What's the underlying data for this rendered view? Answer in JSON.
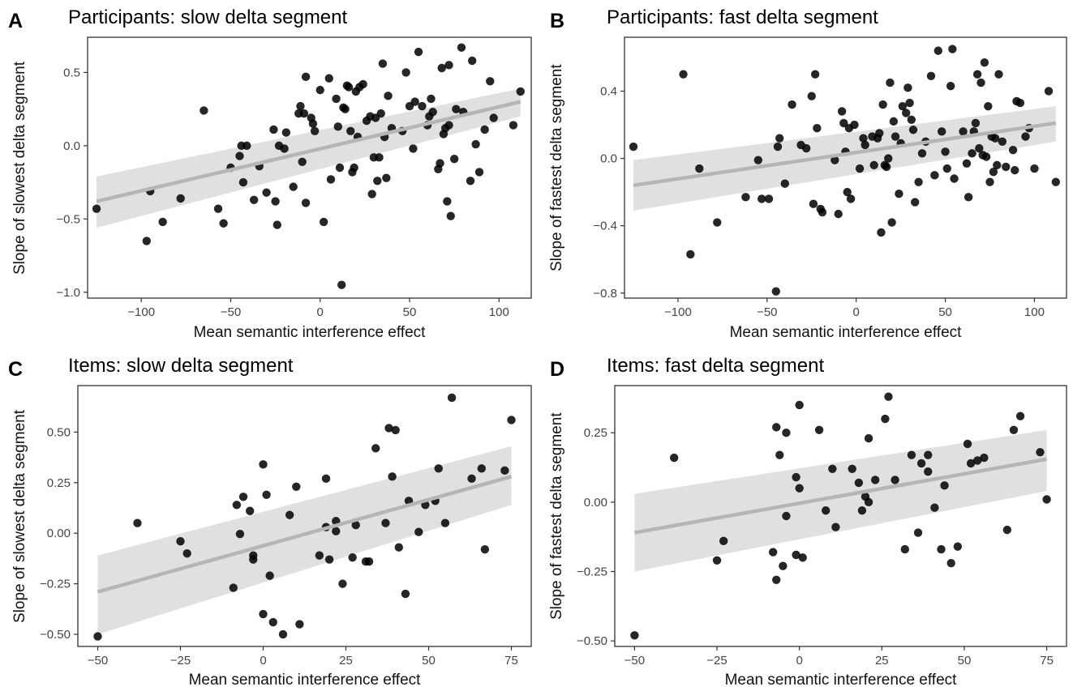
{
  "chart_data": [
    {
      "panel": "A",
      "title": "Participants: slow delta segment",
      "type": "scatter",
      "xlabel": "Mean semantic interference effect",
      "ylabel": "Slope of slowest delta segment",
      "xlim": [
        -130,
        118
      ],
      "ylim": [
        -1.04,
        0.74
      ],
      "xticks": [
        -100,
        -50,
        0,
        50,
        100
      ],
      "xtick_labels": [
        "−100",
        "−50",
        "0",
        "50",
        "100"
      ],
      "yticks": [
        -1.0,
        -0.5,
        0.0,
        0.5
      ],
      "ytick_labels": [
        "−1.0",
        "−0.5",
        "0.0",
        "0.5"
      ],
      "grid": false,
      "fit": {
        "x0": -125,
        "x1": 112,
        "y0": -0.38,
        "y1": 0.3,
        "lo0": -0.56,
        "hi0": -0.21,
        "lo1": 0.2,
        "hi1": 0.39
      },
      "points": [
        [
          -125,
          -0.43
        ],
        [
          -97,
          -0.65
        ],
        [
          -95,
          -0.31
        ],
        [
          -88,
          -0.52
        ],
        [
          -78,
          -0.36
        ],
        [
          -65,
          0.24
        ],
        [
          -57,
          -0.43
        ],
        [
          -54,
          -0.53
        ],
        [
          -50,
          -0.15
        ],
        [
          -45,
          -0.07
        ],
        [
          -44,
          0.0
        ],
        [
          -43,
          -0.25
        ],
        [
          -41,
          0.0
        ],
        [
          -37,
          -0.37
        ],
        [
          -34,
          -0.14
        ],
        [
          -30,
          -0.32
        ],
        [
          -26,
          0.11
        ],
        [
          -25,
          -0.38
        ],
        [
          -24,
          -0.54
        ],
        [
          -23,
          0.0
        ],
        [
          -20,
          -0.02
        ],
        [
          -19,
          0.09
        ],
        [
          -15,
          -0.28
        ],
        [
          -12,
          0.22
        ],
        [
          -11,
          0.27
        ],
        [
          -10,
          -0.11
        ],
        [
          -9,
          0.22
        ],
        [
          -8,
          0.47
        ],
        [
          -8,
          -0.39
        ],
        [
          -5,
          0.19
        ],
        [
          -4,
          0.15
        ],
        [
          -3,
          0.1
        ],
        [
          0,
          0.38
        ],
        [
          2,
          -0.52
        ],
        [
          5,
          0.46
        ],
        [
          6,
          -0.23
        ],
        [
          9,
          0.32
        ],
        [
          10,
          0.13
        ],
        [
          11,
          -0.15
        ],
        [
          12,
          -0.95
        ],
        [
          13,
          0.26
        ],
        [
          14,
          0.25
        ],
        [
          15,
          0.41
        ],
        [
          16,
          0.4
        ],
        [
          17,
          0.1
        ],
        [
          18,
          -0.18
        ],
        [
          19,
          -0.15
        ],
        [
          20,
          0.37
        ],
        [
          21,
          0.06
        ],
        [
          22,
          0.4
        ],
        [
          24,
          0.42
        ],
        [
          26,
          0.17
        ],
        [
          28,
          0.2
        ],
        [
          29,
          -0.33
        ],
        [
          30,
          -0.08
        ],
        [
          31,
          0.19
        ],
        [
          32,
          -0.24
        ],
        [
          33,
          -0.08
        ],
        [
          34,
          0.22
        ],
        [
          35,
          0.56
        ],
        [
          36,
          0.06
        ],
        [
          37,
          -0.22
        ],
        [
          38,
          0.34
        ],
        [
          40,
          0.12
        ],
        [
          46,
          0.1
        ],
        [
          48,
          0.5
        ],
        [
          50,
          0.27
        ],
        [
          52,
          -0.02
        ],
        [
          53,
          0.3
        ],
        [
          55,
          0.64
        ],
        [
          57,
          0.27
        ],
        [
          60,
          0.14
        ],
        [
          61,
          0.2
        ],
        [
          62,
          0.32
        ],
        [
          63,
          0.23
        ],
        [
          66,
          -0.16
        ],
        [
          67,
          -0.12
        ],
        [
          68,
          0.53
        ],
        [
          69,
          0.08
        ],
        [
          70,
          0.12
        ],
        [
          71,
          -0.38
        ],
        [
          72,
          0.55
        ],
        [
          72,
          0.14
        ],
        [
          73,
          -0.48
        ],
        [
          75,
          -0.09
        ],
        [
          76,
          0.25
        ],
        [
          79,
          0.67
        ],
        [
          80,
          0.23
        ],
        [
          84,
          -0.24
        ],
        [
          85,
          0.58
        ],
        [
          87,
          0.01
        ],
        [
          89,
          -0.18
        ],
        [
          92,
          0.11
        ],
        [
          95,
          0.44
        ],
        [
          97,
          0.19
        ],
        [
          108,
          0.14
        ],
        [
          112,
          0.37
        ]
      ]
    },
    {
      "panel": "B",
      "title": "Participants: fast delta segment",
      "type": "scatter",
      "xlabel": "Mean semantic interference effect",
      "ylabel": "Slope of fastest delta segment",
      "xlim": [
        -130,
        118
      ],
      "ylim": [
        -0.83,
        0.72
      ],
      "xticks": [
        -100,
        -50,
        0,
        50,
        100
      ],
      "xtick_labels": [
        "−100",
        "−50",
        "0",
        "50",
        "100"
      ],
      "yticks": [
        -0.8,
        -0.4,
        0.0,
        0.4
      ],
      "ytick_labels": [
        "−0.8",
        "−0.4",
        "0.0",
        "0.4"
      ],
      "grid": false,
      "fit": {
        "x0": -125,
        "x1": 112,
        "y0": -0.16,
        "y1": 0.21,
        "lo0": -0.31,
        "hi0": -0.01,
        "lo1": 0.1,
        "hi1": 0.31
      },
      "points": [
        [
          -125,
          0.07
        ],
        [
          -97,
          0.5
        ],
        [
          -93,
          -0.57
        ],
        [
          -88,
          -0.06
        ],
        [
          -78,
          -0.38
        ],
        [
          -62,
          -0.23
        ],
        [
          -55,
          -0.01
        ],
        [
          -53,
          -0.24
        ],
        [
          -49,
          -0.24
        ],
        [
          -45,
          -0.79
        ],
        [
          -44,
          0.07
        ],
        [
          -43,
          0.12
        ],
        [
          -40,
          -0.15
        ],
        [
          -36,
          0.32
        ],
        [
          -31,
          0.08
        ],
        [
          -28,
          0.06
        ],
        [
          -25,
          0.37
        ],
        [
          -24,
          -0.27
        ],
        [
          -23,
          0.5
        ],
        [
          -22,
          0.18
        ],
        [
          -20,
          -0.3
        ],
        [
          -19,
          -0.32
        ],
        [
          -12,
          -0.01
        ],
        [
          -10,
          -0.33
        ],
        [
          -8,
          0.28
        ],
        [
          -7,
          0.21
        ],
        [
          -6,
          0.04
        ],
        [
          -5,
          -0.2
        ],
        [
          -4,
          0.18
        ],
        [
          -3,
          -0.24
        ],
        [
          -1,
          0.2
        ],
        [
          2,
          -0.06
        ],
        [
          4,
          0.12
        ],
        [
          5,
          0.08
        ],
        [
          9,
          0.13
        ],
        [
          10,
          -0.04
        ],
        [
          12,
          0.12
        ],
        [
          13,
          0.15
        ],
        [
          14,
          -0.44
        ],
        [
          15,
          0.32
        ],
        [
          16,
          -0.04
        ],
        [
          17,
          -0.05
        ],
        [
          18,
          0.0
        ],
        [
          19,
          0.45
        ],
        [
          20,
          -0.38
        ],
        [
          21,
          0.22
        ],
        [
          22,
          0.13
        ],
        [
          24,
          -0.21
        ],
        [
          25,
          0.09
        ],
        [
          26,
          0.31
        ],
        [
          28,
          0.27
        ],
        [
          29,
          0.42
        ],
        [
          30,
          0.33
        ],
        [
          31,
          0.23
        ],
        [
          32,
          0.17
        ],
        [
          33,
          -0.26
        ],
        [
          35,
          -0.14
        ],
        [
          37,
          0.03
        ],
        [
          39,
          0.1
        ],
        [
          42,
          0.49
        ],
        [
          44,
          -0.1
        ],
        [
          46,
          0.64
        ],
        [
          48,
          0.16
        ],
        [
          50,
          0.04
        ],
        [
          51,
          -0.06
        ],
        [
          53,
          0.43
        ],
        [
          54,
          0.65
        ],
        [
          55,
          -0.12
        ],
        [
          60,
          0.16
        ],
        [
          62,
          -0.03
        ],
        [
          63,
          -0.23
        ],
        [
          65,
          0.03
        ],
        [
          66,
          0.16
        ],
        [
          67,
          0.21
        ],
        [
          68,
          0.5
        ],
        [
          69,
          0.06
        ],
        [
          70,
          0.45
        ],
        [
          71,
          0.02
        ],
        [
          72,
          0.57
        ],
        [
          73,
          0.01
        ],
        [
          74,
          0.31
        ],
        [
          75,
          -0.14
        ],
        [
          76,
          0.13
        ],
        [
          77,
          -0.08
        ],
        [
          78,
          0.12
        ],
        [
          79,
          -0.04
        ],
        [
          80,
          0.5
        ],
        [
          82,
          0.1
        ],
        [
          84,
          -0.05
        ],
        [
          88,
          0.05
        ],
        [
          89,
          -0.07
        ],
        [
          90,
          0.34
        ],
        [
          92,
          0.33
        ],
        [
          95,
          0.13
        ],
        [
          97,
          0.18
        ],
        [
          100,
          -0.06
        ],
        [
          108,
          0.4
        ],
        [
          112,
          -0.14
        ]
      ]
    },
    {
      "panel": "C",
      "title": "Items: slow delta segment",
      "type": "scatter",
      "xlabel": "Mean semantic interference effect",
      "ylabel": "Slope of slowest delta segment",
      "xlim": [
        -56,
        81
      ],
      "ylim": [
        -0.56,
        0.73
      ],
      "xticks": [
        -50,
        -25,
        0,
        25,
        50,
        75
      ],
      "xtick_labels": [
        "−50",
        "−25",
        "0",
        "25",
        "50",
        "75"
      ],
      "yticks": [
        -0.5,
        -0.25,
        0.0,
        0.25,
        0.5
      ],
      "ytick_labels": [
        "−0.50",
        "−0.25",
        "0.00",
        "0.25",
        "0.50"
      ],
      "grid": false,
      "fit": {
        "x0": -50,
        "x1": 75,
        "y0": -0.29,
        "y1": 0.28,
        "lo0": -0.5,
        "hi0": -0.11,
        "lo1": 0.14,
        "hi1": 0.43
      },
      "points": [
        [
          -50,
          -0.51
        ],
        [
          -38,
          0.05
        ],
        [
          -25,
          -0.04
        ],
        [
          -23,
          -0.1
        ],
        [
          -9,
          -0.27
        ],
        [
          -8,
          0.14
        ],
        [
          -7,
          -0.004
        ],
        [
          -6,
          0.18
        ],
        [
          -4,
          0.11
        ],
        [
          -3,
          -0.13
        ],
        [
          -3,
          -0.11
        ],
        [
          0,
          0.34
        ],
        [
          0,
          -0.4
        ],
        [
          1,
          0.19
        ],
        [
          2,
          -0.21
        ],
        [
          3,
          -0.44
        ],
        [
          6,
          -0.5
        ],
        [
          8,
          0.09
        ],
        [
          10,
          0.23
        ],
        [
          11,
          -0.45
        ],
        [
          17,
          -0.11
        ],
        [
          19,
          0.03
        ],
        [
          19,
          0.27
        ],
        [
          20,
          -0.13
        ],
        [
          22,
          0.01
        ],
        [
          22,
          0.06
        ],
        [
          24,
          -0.25
        ],
        [
          27,
          -0.12
        ],
        [
          28,
          0.04
        ],
        [
          31,
          -0.14
        ],
        [
          32,
          -0.14
        ],
        [
          34,
          0.42
        ],
        [
          37,
          0.05
        ],
        [
          38,
          0.52
        ],
        [
          39,
          0.28
        ],
        [
          40,
          0.51
        ],
        [
          41,
          -0.07
        ],
        [
          43,
          -0.3
        ],
        [
          44,
          0.16
        ],
        [
          47,
          0.006
        ],
        [
          49,
          0.14
        ],
        [
          52,
          0.16
        ],
        [
          53,
          0.32
        ],
        [
          55,
          0.05
        ],
        [
          57,
          0.67
        ],
        [
          63,
          0.27
        ],
        [
          66,
          0.32
        ],
        [
          67,
          -0.08
        ],
        [
          73,
          0.31
        ],
        [
          75,
          0.56
        ]
      ]
    },
    {
      "panel": "D",
      "title": "Items: fast delta segment",
      "type": "scatter",
      "xlabel": "Mean semantic interference effect",
      "ylabel": "Slope of fastest delta segment",
      "xlim": [
        -56,
        81
      ],
      "ylim": [
        -0.52,
        0.42
      ],
      "xticks": [
        -50,
        -25,
        0,
        25,
        50,
        75
      ],
      "xtick_labels": [
        "−50",
        "−25",
        "0",
        "25",
        "50",
        "75"
      ],
      "yticks": [
        -0.5,
        -0.25,
        0.0,
        0.25
      ],
      "ytick_labels": [
        "−0.50",
        "−0.25",
        "0.00",
        "0.25"
      ],
      "grid": false,
      "fit": {
        "x0": -50,
        "x1": 75,
        "y0": -0.11,
        "y1": 0.155,
        "lo0": -0.25,
        "hi0": 0.03,
        "lo1": 0.04,
        "hi1": 0.26
      },
      "points": [
        [
          -50,
          -0.48
        ],
        [
          -38,
          0.16
        ],
        [
          -25,
          -0.21
        ],
        [
          -23,
          -0.14
        ],
        [
          -8,
          -0.18
        ],
        [
          -7,
          0.27
        ],
        [
          -7,
          -0.28
        ],
        [
          -6,
          0.17
        ],
        [
          -5,
          -0.23
        ],
        [
          -4,
          0.25
        ],
        [
          -4,
          -0.05
        ],
        [
          -1,
          0.09
        ],
        [
          -1,
          -0.19
        ],
        [
          0,
          0.05
        ],
        [
          0,
          0.35
        ],
        [
          1,
          -0.2
        ],
        [
          6,
          0.26
        ],
        [
          8,
          -0.03
        ],
        [
          10,
          0.12
        ],
        [
          11,
          -0.09
        ],
        [
          16,
          0.12
        ],
        [
          18,
          0.07
        ],
        [
          19,
          -0.03
        ],
        [
          20,
          0.02
        ],
        [
          21,
          0.0
        ],
        [
          21,
          0.23
        ],
        [
          23,
          0.08
        ],
        [
          26,
          0.3
        ],
        [
          27,
          0.38
        ],
        [
          29,
          0.08
        ],
        [
          32,
          -0.17
        ],
        [
          34,
          0.17
        ],
        [
          36,
          -0.11
        ],
        [
          37,
          0.14
        ],
        [
          39,
          0.11
        ],
        [
          39,
          0.17
        ],
        [
          41,
          -0.02
        ],
        [
          43,
          -0.17
        ],
        [
          44,
          0.06
        ],
        [
          46,
          -0.22
        ],
        [
          48,
          -0.16
        ],
        [
          51,
          0.21
        ],
        [
          52,
          0.14
        ],
        [
          54,
          0.15
        ],
        [
          56,
          0.16
        ],
        [
          63,
          -0.1
        ],
        [
          65,
          0.26
        ],
        [
          67,
          0.31
        ],
        [
          73,
          0.18
        ],
        [
          75,
          0.01
        ]
      ]
    }
  ]
}
